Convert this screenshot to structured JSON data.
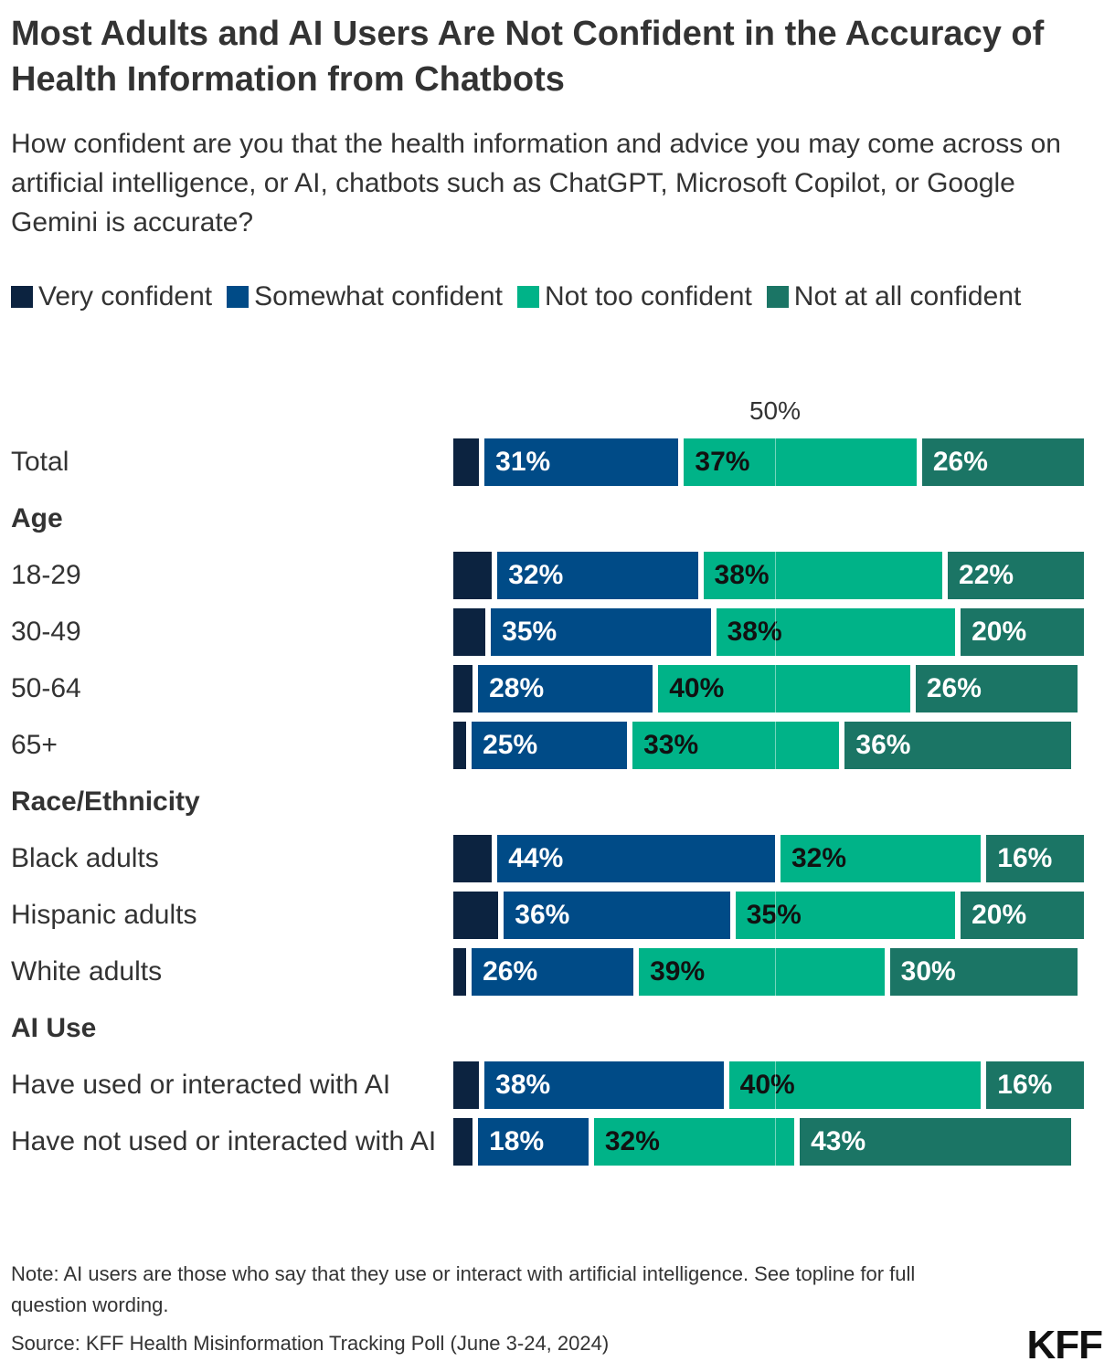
{
  "title": "Most Adults and AI Users Are Not Confident in the Accuracy of Health Information from Chatbots",
  "chart_data": {
    "type": "stacked-bar-horizontal",
    "subtitle": "How confident are you that the health information and advice you may come across on artificial intelligence, or AI, chatbots such as ChatGPT, Microsoft Copilot, or Google Gemini is accurate?",
    "categories": [
      "Total",
      "Age",
      "18-29",
      "30-49",
      "50-64",
      "65+",
      "Race/Ethnicity",
      "Black adults",
      "Hispanic adults",
      "White adults",
      "AI Use",
      "Have used or interacted with AI",
      "Have not used or interacted with AI"
    ],
    "series": [
      {
        "name": "Very confident",
        "color": "#0c2340",
        "values": [
          4,
          null,
          6,
          5,
          3,
          2,
          null,
          6,
          7,
          2,
          null,
          4,
          3
        ]
      },
      {
        "name": "Somewhat confident",
        "color": "#004b87",
        "values": [
          31,
          null,
          32,
          35,
          28,
          25,
          null,
          44,
          36,
          26,
          null,
          38,
          18
        ],
        "value_labels": [
          "31%",
          null,
          "32%",
          "35%",
          "28%",
          "25%",
          null,
          "44%",
          "36%",
          "26%",
          null,
          "38%",
          "18%"
        ]
      },
      {
        "name": "Not too confident",
        "color": "#00b388",
        "values": [
          37,
          null,
          38,
          38,
          40,
          33,
          null,
          32,
          35,
          39,
          null,
          40,
          32
        ],
        "value_labels": [
          "37%",
          null,
          "38%",
          "38%",
          "40%",
          "33%",
          null,
          "32%",
          "35%",
          "39%",
          null,
          "40%",
          "32%"
        ]
      },
      {
        "name": "Not at all confident",
        "color": "#1b7565",
        "values": [
          26,
          null,
          22,
          20,
          26,
          36,
          null,
          16,
          20,
          30,
          null,
          16,
          43
        ],
        "value_labels": [
          "26%",
          null,
          "22%",
          "20%",
          "26%",
          "36%",
          null,
          "16%",
          "20%",
          "30%",
          null,
          "16%",
          "43%"
        ]
      }
    ],
    "xlim": [
      0,
      100
    ],
    "xticks": [
      {
        "value": 50,
        "label": "50%"
      }
    ]
  },
  "note": "Note: AI users are those who say that they use or interact with artificial intelligence. See topline for full question wording.",
  "source": "Source: KFF Health Misinformation Tracking Poll (June 3-24, 2024)",
  "logo": "KFF"
}
